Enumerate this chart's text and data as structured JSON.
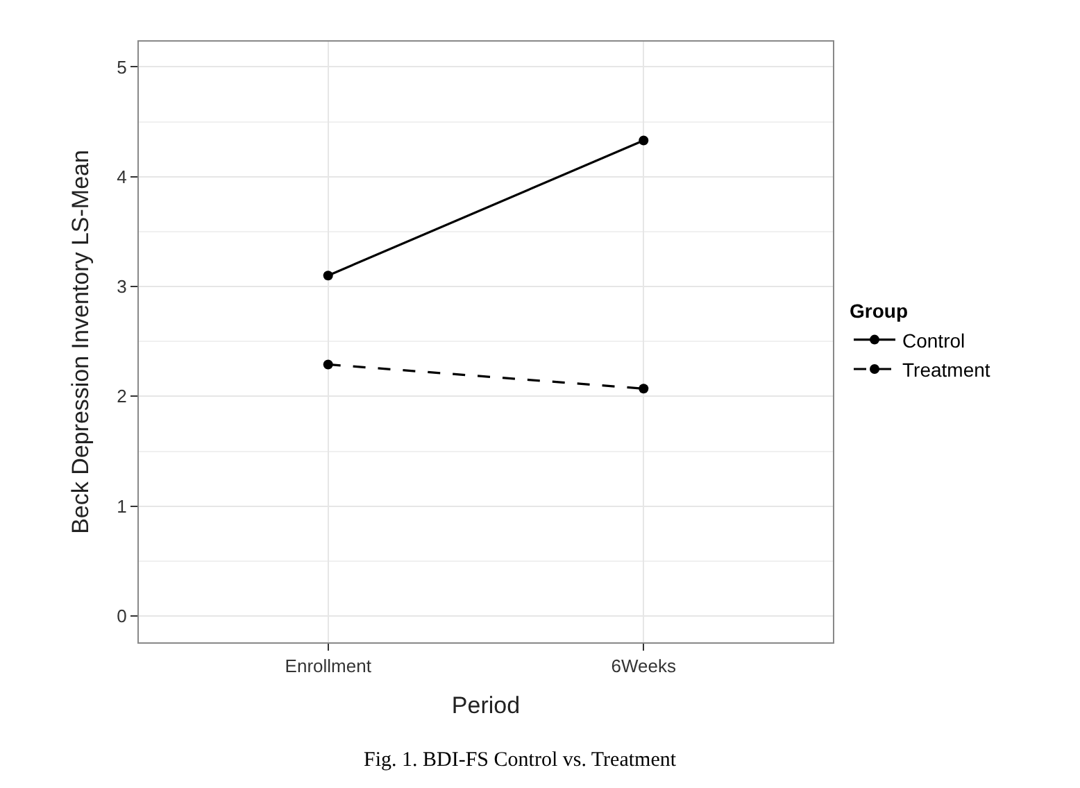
{
  "chart_data": {
    "type": "line",
    "xlabel": "Period",
    "ylabel": "Beck Depression Inventory LS-Mean",
    "legend_title": "Group",
    "categories": [
      "Enrollment",
      "6Weeks"
    ],
    "series": [
      {
        "name": "Control",
        "color": "#000000",
        "values": [
          3.1,
          4.33
        ],
        "line_style": "solid"
      },
      {
        "name": "Treatment",
        "color": "#000000",
        "values": [
          2.29,
          2.07
        ],
        "line_style": "dashed"
      }
    ],
    "ylim": [
      -0.24,
      5.23
    ],
    "yticks": [
      0,
      1,
      2,
      3,
      4,
      5
    ],
    "grid": true,
    "legend": "right",
    "marker": "circle",
    "annotations": [
      "Fig. 1. BDI-FS Control vs. Treatment"
    ]
  }
}
